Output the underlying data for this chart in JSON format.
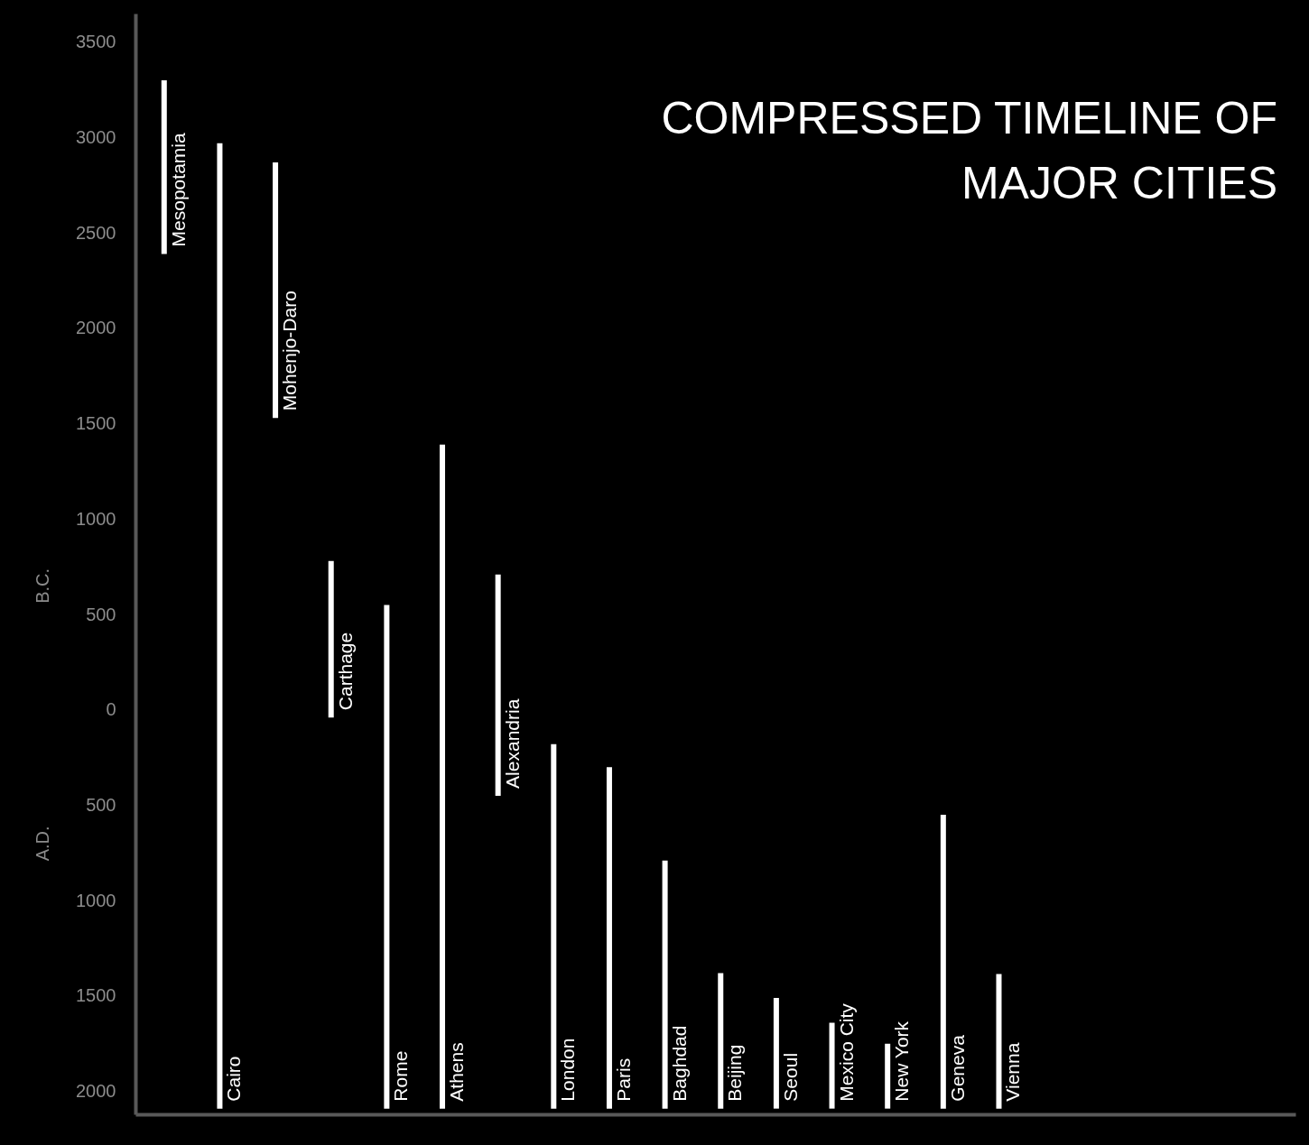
{
  "chart_data": {
    "type": "bar",
    "title": "COMPRESSED TIMELINE OF\nMAJOR CITIES",
    "categories": [
      "Mesopotamia",
      "Cairo",
      "Mohenjo-Daro",
      "Carthage",
      "Rome",
      "Athens",
      "Alexandria",
      "London",
      "Paris",
      "Baghdad",
      "Beijing",
      "Seoul",
      "Mexico City",
      "New York",
      "Geneva",
      "Vienna"
    ],
    "base": [
      -3300,
      -2970,
      -2870,
      -780,
      -550,
      -1390,
      -710,
      180,
      300,
      790,
      1380,
      1510,
      1640,
      1750,
      550,
      1385
    ],
    "values": [
      910,
      5060,
      1340,
      820,
      2640,
      3480,
      1160,
      1910,
      1790,
      1300,
      710,
      580,
      450,
      340,
      1540,
      705
    ],
    "color": "#ffffff",
    "ylim": [
      2120,
      -3650
    ],
    "yticks": [
      {
        "value": -3500,
        "label": "3500"
      },
      {
        "value": -3000,
        "label": "3000"
      },
      {
        "value": -2500,
        "label": "2500"
      },
      {
        "value": -2000,
        "label": "2000"
      },
      {
        "value": -1500,
        "label": "1500"
      },
      {
        "value": -1000,
        "label": "1000"
      },
      {
        "value": -500,
        "label": "500"
      },
      0,
      500,
      1000,
      1500,
      2000
    ],
    "annotations": [
      "B.C.",
      "A.D."
    ],
    "tick_labels": "y"
  }
}
